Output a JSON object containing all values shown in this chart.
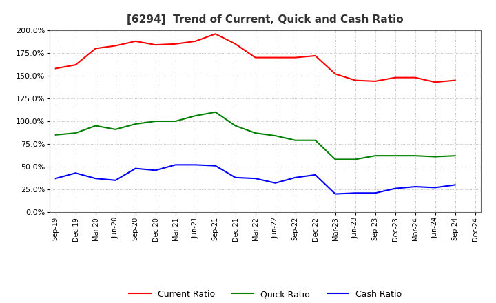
{
  "title": "[6294]  Trend of Current, Quick and Cash Ratio",
  "x_labels": [
    "Sep-19",
    "Dec-19",
    "Mar-20",
    "Jun-20",
    "Sep-20",
    "Dec-20",
    "Mar-21",
    "Jun-21",
    "Sep-21",
    "Dec-21",
    "Mar-22",
    "Jun-22",
    "Sep-22",
    "Dec-22",
    "Mar-23",
    "Jun-23",
    "Sep-23",
    "Dec-23",
    "Mar-24",
    "Jun-24",
    "Sep-24",
    "Dec-24"
  ],
  "current_ratio": [
    158,
    162,
    180,
    183,
    188,
    184,
    185,
    188,
    196,
    185,
    170,
    170,
    170,
    172,
    152,
    145,
    144,
    148,
    148,
    143,
    145,
    null
  ],
  "quick_ratio": [
    85,
    87,
    95,
    91,
    97,
    100,
    100,
    106,
    110,
    95,
    87,
    84,
    79,
    79,
    58,
    58,
    62,
    62,
    62,
    61,
    62,
    null
  ],
  "cash_ratio": [
    37,
    43,
    37,
    35,
    48,
    46,
    52,
    52,
    51,
    38,
    37,
    32,
    38,
    41,
    20,
    21,
    21,
    26,
    28,
    27,
    30,
    null
  ],
  "current_color": "#FF0000",
  "quick_color": "#008000",
  "cash_color": "#0000FF",
  "ylim": [
    0,
    200
  ],
  "yticks": [
    0,
    25,
    50,
    75,
    100,
    125,
    150,
    175,
    200
  ],
  "background_color": "#FFFFFF",
  "grid_color": "#999999",
  "title_color": "#333333"
}
